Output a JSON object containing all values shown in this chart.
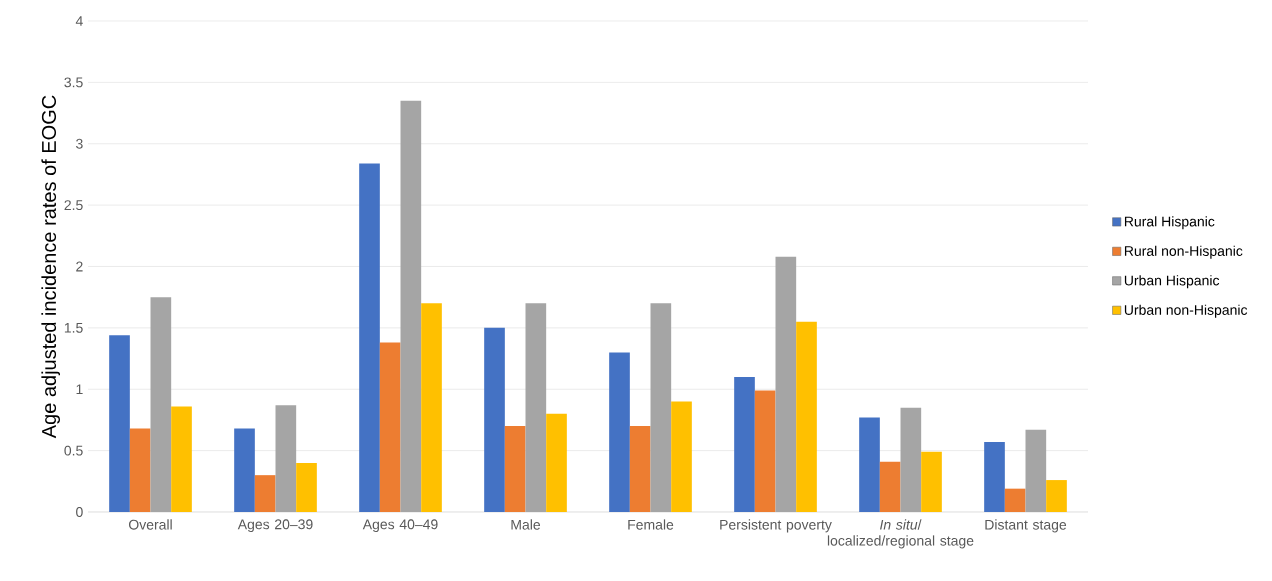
{
  "chart_data": {
    "type": "bar",
    "ylabel": "Age adjusted incidence rates of EOGC",
    "categories": [
      "Overall",
      "Ages 20–39",
      "Ages 40–49",
      "Male",
      "Female",
      "Persistent poverty",
      "*In situ*/ localized/regional stage",
      "Distant stage"
    ],
    "series": [
      {
        "name": "Rural Hispanic",
        "color": "#4472c4",
        "values": [
          1.44,
          0.68,
          2.84,
          1.5,
          1.3,
          1.1,
          0.77,
          0.57
        ]
      },
      {
        "name": "Rural non-Hispanic",
        "color": "#ed7d31",
        "values": [
          0.68,
          0.3,
          1.38,
          0.7,
          0.7,
          0.99,
          0.41,
          0.19
        ]
      },
      {
        "name": "Urban Hispanic",
        "color": "#a5a5a5",
        "values": [
          1.75,
          0.87,
          3.35,
          1.7,
          1.7,
          2.08,
          0.85,
          0.67
        ]
      },
      {
        "name": "Urban non-Hispanic",
        "color": "#ffc000",
        "values": [
          0.86,
          0.4,
          1.7,
          0.8,
          0.9,
          1.55,
          0.49,
          0.26
        ]
      }
    ],
    "ylim": [
      0,
      4
    ],
    "yticks": [
      0,
      0.5,
      1,
      1.5,
      2,
      2.5,
      3,
      3.5,
      4
    ],
    "grid": "y",
    "legend": "right"
  }
}
